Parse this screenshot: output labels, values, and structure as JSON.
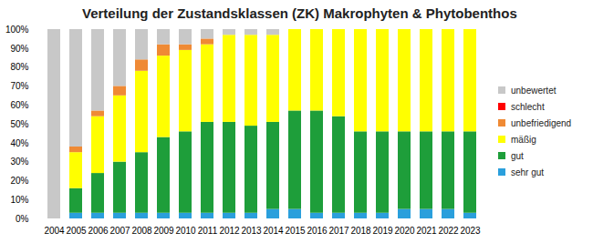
{
  "chart_data": {
    "type": "bar",
    "stacked": true,
    "title": "Verteilung der Zustandsklassen (ZK) Makrophyten & Phytobenthos",
    "categories": [
      "2004",
      "2005",
      "2006",
      "2007",
      "2008",
      "2009",
      "2010",
      "2011",
      "2012",
      "2013",
      "2014",
      "2015",
      "2016",
      "2017",
      "2018",
      "2019",
      "2020",
      "2021",
      "2022",
      "2023"
    ],
    "series": [
      {
        "name": "sehr gut",
        "color": "#2a9fdc",
        "values": [
          0,
          3,
          3,
          3,
          3,
          3,
          3,
          3,
          3,
          3,
          5,
          5,
          3,
          3,
          3,
          3,
          5,
          5,
          5,
          3
        ]
      },
      {
        "name": "gut",
        "color": "#1e9e3a",
        "values": [
          0,
          13,
          21,
          27,
          32,
          40,
          43,
          48,
          48,
          46,
          46,
          52,
          54,
          51,
          43,
          43,
          41,
          41,
          41,
          43
        ]
      },
      {
        "name": "mäßig",
        "color": "#ffff00",
        "values": [
          0,
          19,
          30,
          35,
          43,
          43,
          43,
          41,
          46,
          48,
          46,
          43,
          43,
          46,
          54,
          54,
          54,
          54,
          54,
          54
        ]
      },
      {
        "name": "unbefriedigend",
        "color": "#ef8a35",
        "values": [
          0,
          3,
          3,
          5,
          6,
          6,
          3,
          3,
          0,
          0,
          0,
          0,
          0,
          0,
          0,
          0,
          0,
          0,
          0,
          0
        ]
      },
      {
        "name": "schlecht",
        "color": "#ff0000",
        "values": [
          0,
          0,
          0,
          0,
          0,
          0,
          0,
          0,
          0,
          0,
          0,
          0,
          0,
          0,
          0,
          0,
          0,
          0,
          0,
          0
        ]
      },
      {
        "name": "unbewertet",
        "color": "#c8c8c8",
        "values": [
          100,
          62,
          43,
          30,
          16,
          8,
          8,
          5,
          3,
          3,
          3,
          0,
          0,
          0,
          0,
          0,
          0,
          0,
          0,
          0
        ]
      }
    ],
    "ylim": [
      0,
      100
    ],
    "yticks": [
      {
        "value": 0,
        "label": "0%"
      },
      {
        "value": 10,
        "label": "10%"
      },
      {
        "value": 20,
        "label": "20%"
      },
      {
        "value": 30,
        "label": "30%"
      },
      {
        "value": 40,
        "label": "40%"
      },
      {
        "value": 50,
        "label": "50%"
      },
      {
        "value": 60,
        "label": "60%"
      },
      {
        "value": 70,
        "label": "70%"
      },
      {
        "value": 80,
        "label": "80%"
      },
      {
        "value": 90,
        "label": "90%"
      },
      {
        "value": 100,
        "label": "100%"
      }
    ],
    "grid": false,
    "legend": "right"
  }
}
